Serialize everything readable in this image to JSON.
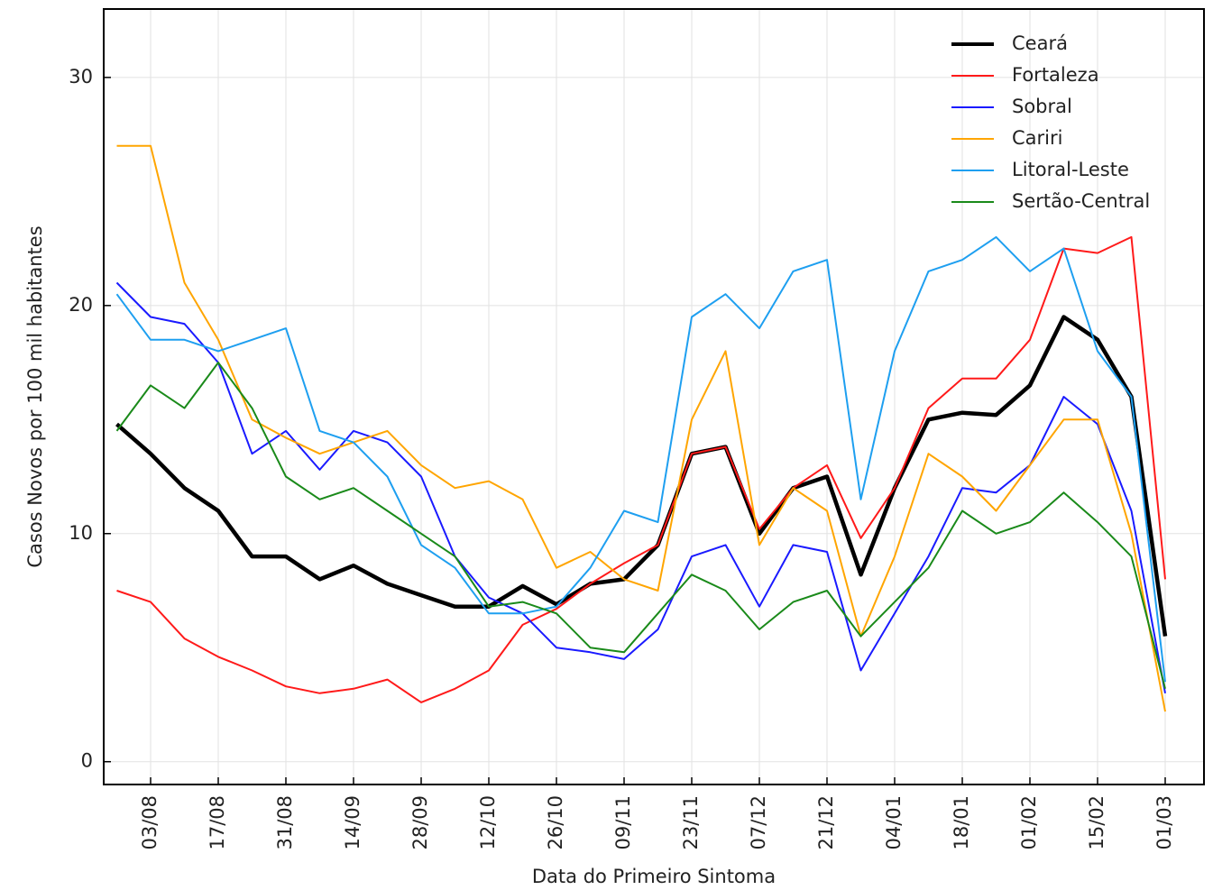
{
  "chart_data": {
    "type": "line",
    "x_label": "Data do Primeiro Sintoma",
    "y_label": "Casos Novos por 100 mil habitantes",
    "categories": [
      null,
      "03/08",
      null,
      "17/08",
      null,
      "31/08",
      null,
      "14/09",
      null,
      "28/09",
      null,
      "12/10",
      null,
      "26/10",
      null,
      "09/11",
      null,
      "23/11",
      null,
      "07/12",
      null,
      "21/12",
      null,
      "04/01",
      null,
      "18/01",
      null,
      "01/02",
      null,
      "15/02",
      null,
      "01/03"
    ],
    "ylim": [
      -1,
      33
    ],
    "yticks": [
      0,
      10,
      20,
      30
    ],
    "grid": true,
    "legend": "upper right",
    "series": [
      {
        "name": "Ceará",
        "color": "#000000",
        "values": [
          14.8,
          13.5,
          12.0,
          11.0,
          9.0,
          9.0,
          8.0,
          8.6,
          7.8,
          7.3,
          6.8,
          6.8,
          7.7,
          6.9,
          7.8,
          8.0,
          9.5,
          13.5,
          13.8,
          10.0,
          12.0,
          12.5,
          8.2,
          12.0,
          15.0,
          15.3,
          15.2,
          16.5,
          19.5,
          18.5,
          16.0,
          5.5
        ]
      },
      {
        "name": "Fortaleza",
        "color": "#ff1a1a",
        "values": [
          7.5,
          7.0,
          5.4,
          4.6,
          4.0,
          3.3,
          3.0,
          3.2,
          3.6,
          2.6,
          3.2,
          4.0,
          6.0,
          6.7,
          7.8,
          8.7,
          9.5,
          13.5,
          13.8,
          10.2,
          12.0,
          13.0,
          9.8,
          12.0,
          15.5,
          16.8,
          16.8,
          18.5,
          22.5,
          22.3,
          23.0,
          8.0
        ]
      },
      {
        "name": "Sobral",
        "color": "#1a1aff",
        "values": [
          21.0,
          19.5,
          19.2,
          17.5,
          13.5,
          14.5,
          12.8,
          14.5,
          14.0,
          12.5,
          9.0,
          7.2,
          6.5,
          5.0,
          4.8,
          4.5,
          5.8,
          9.0,
          9.5,
          6.8,
          9.5,
          9.2,
          4.0,
          6.5,
          9.0,
          12.0,
          11.8,
          13.0,
          16.0,
          14.8,
          11.0,
          3.0
        ]
      },
      {
        "name": "Cariri",
        "color": "#ffa500",
        "values": [
          27.0,
          27.0,
          21.0,
          18.5,
          15.0,
          14.2,
          13.5,
          14.0,
          14.5,
          13.0,
          12.0,
          12.3,
          11.5,
          8.5,
          9.2,
          8.0,
          7.5,
          15.0,
          18.0,
          9.5,
          12.0,
          11.0,
          5.5,
          9.0,
          13.5,
          12.5,
          11.0,
          13.0,
          15.0,
          15.0,
          10.0,
          2.2
        ]
      },
      {
        "name": "Litoral-Leste",
        "color": "#1e9ff0",
        "values": [
          20.5,
          18.5,
          18.5,
          18.0,
          18.5,
          19.0,
          14.5,
          14.0,
          12.5,
          9.5,
          8.5,
          6.5,
          6.5,
          6.8,
          8.5,
          11.0,
          10.5,
          19.5,
          20.5,
          19.0,
          21.5,
          22.0,
          11.5,
          18.0,
          21.5,
          22.0,
          23.0,
          21.5,
          22.5,
          18.0,
          16.0,
          3.5
        ]
      },
      {
        "name": "Sertão-Central",
        "color": "#1a8a1a",
        "values": [
          14.5,
          16.5,
          15.5,
          17.5,
          15.5,
          12.5,
          11.5,
          12.0,
          11.0,
          10.0,
          9.0,
          6.8,
          7.0,
          6.5,
          5.0,
          4.8,
          6.5,
          8.2,
          7.5,
          5.8,
          7.0,
          7.5,
          5.5,
          7.0,
          8.5,
          11.0,
          10.0,
          10.5,
          11.8,
          10.5,
          9.0,
          3.2
        ]
      }
    ]
  }
}
